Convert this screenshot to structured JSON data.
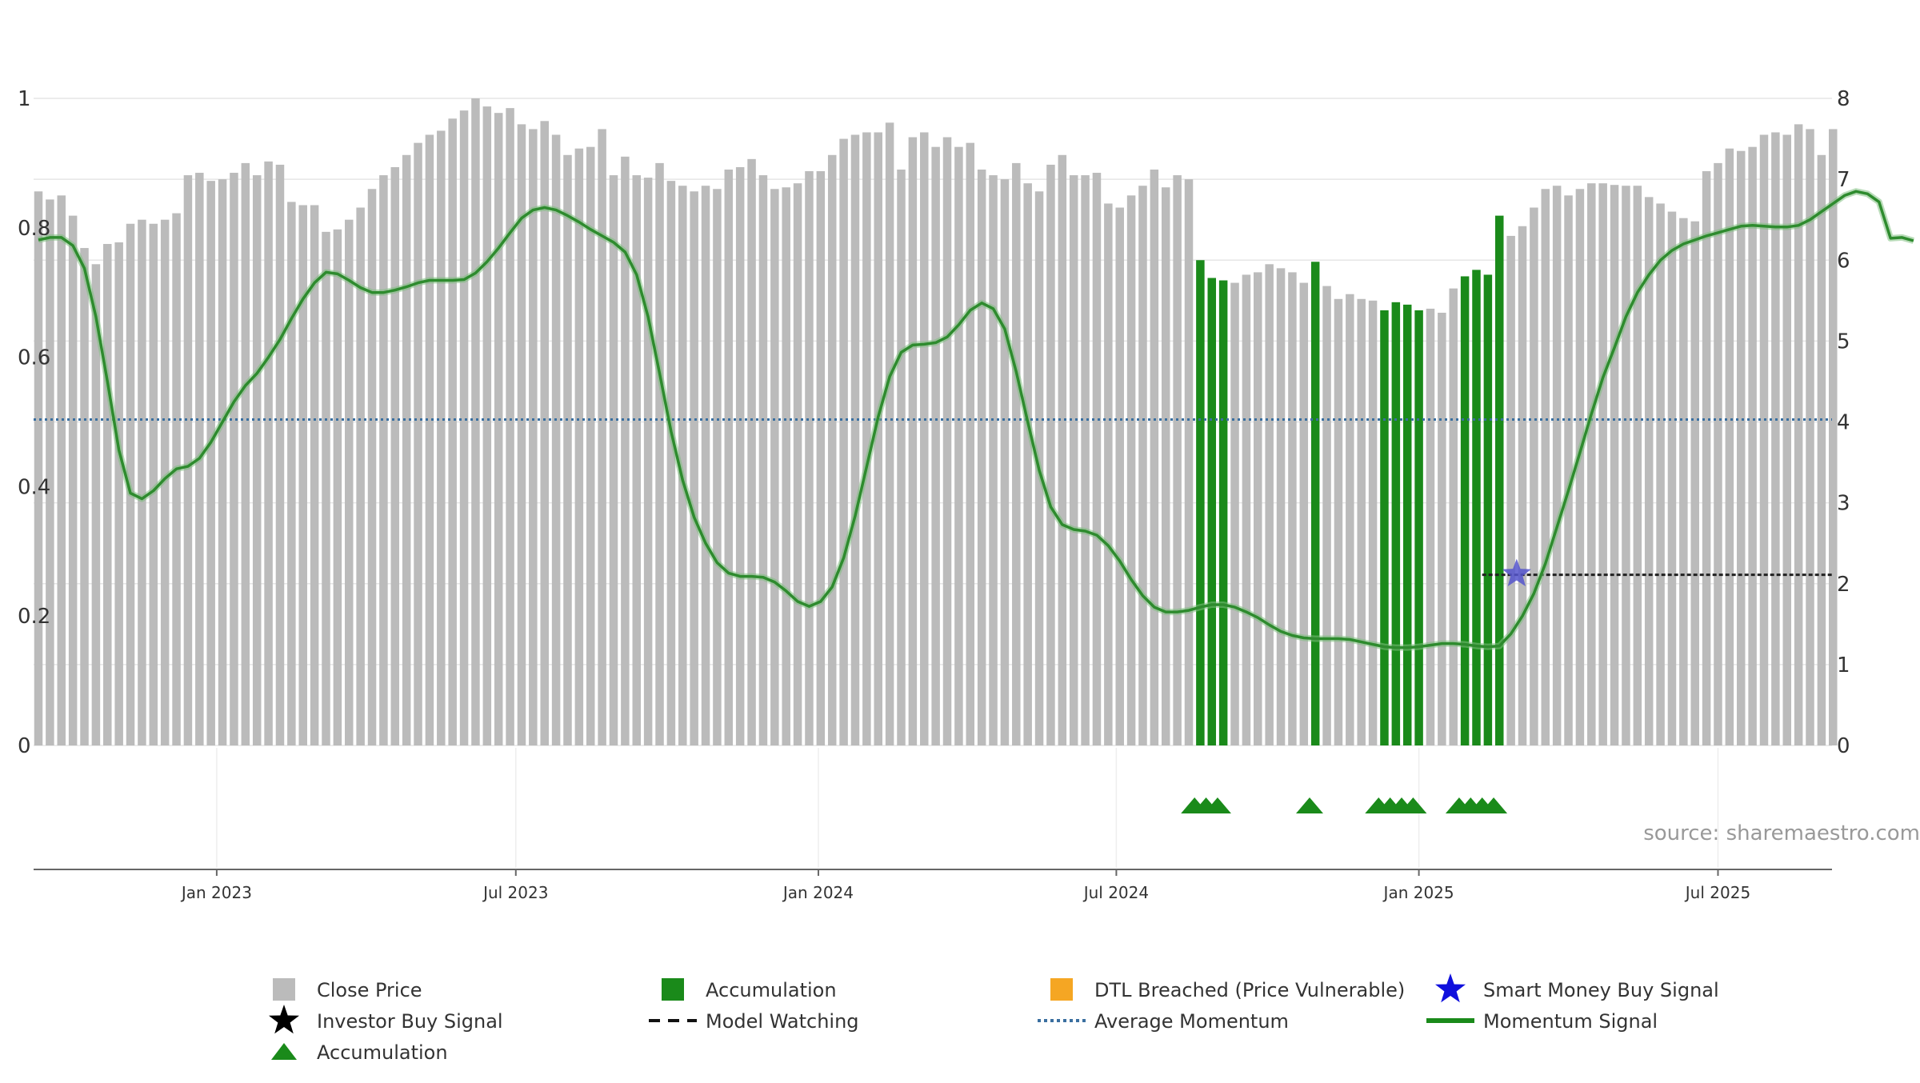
{
  "chart_data": {
    "type": "bar",
    "left_axis": {
      "ticks": [
        "0",
        "0.2",
        "0.4",
        "0.6",
        "0.8",
        "1"
      ],
      "range": [
        0,
        1
      ]
    },
    "right_axis": {
      "ticks": [
        "0",
        "1",
        "2",
        "3",
        "4",
        "5",
        "6",
        "7",
        "8"
      ],
      "range": [
        0,
        8
      ]
    },
    "x_axis": {
      "ticks": [
        {
          "label": "Jan 2023",
          "bar_index": 15.5
        },
        {
          "label": "Jul 2023",
          "bar_index": 41.5
        },
        {
          "label": "Jan 2024",
          "bar_index": 67.8
        },
        {
          "label": "Jul 2024",
          "bar_index": 93.7
        },
        {
          "label": "Jan 2025",
          "bar_index": 120
        },
        {
          "label": "Jul 2025",
          "bar_index": 146
        }
      ]
    },
    "series": [
      {
        "name": "Close Price",
        "axis": "right",
        "color": "#bbbbbb",
        "accumulation_color": "#1a8a1a",
        "values": [
          6.85,
          6.75,
          6.8,
          6.55,
          6.15,
          5.95,
          6.2,
          6.22,
          6.45,
          6.5,
          6.45,
          6.5,
          6.58,
          7.05,
          7.08,
          6.98,
          7.0,
          7.08,
          7.2,
          7.05,
          7.22,
          7.18,
          6.72,
          6.68,
          6.68,
          6.35,
          6.38,
          6.5,
          6.65,
          6.88,
          7.05,
          7.15,
          7.3,
          7.45,
          7.55,
          7.6,
          7.75,
          7.85,
          8.0,
          7.9,
          7.82,
          7.88,
          7.68,
          7.62,
          7.72,
          7.55,
          7.3,
          7.38,
          7.4,
          7.62,
          7.05,
          7.28,
          7.05,
          7.02,
          7.2,
          6.98,
          6.92,
          6.85,
          6.92,
          6.88,
          7.12,
          7.15,
          7.25,
          7.05,
          6.88,
          6.9,
          6.95,
          7.1,
          7.1,
          7.3,
          7.5,
          7.55,
          7.58,
          7.58,
          7.7,
          7.12,
          7.52,
          7.58,
          7.4,
          7.52,
          7.4,
          7.45,
          7.12,
          7.05,
          7.0,
          7.2,
          6.95,
          6.85,
          7.18,
          7.3,
          7.05,
          7.05,
          7.08,
          6.7,
          6.65,
          6.8,
          6.92,
          7.12,
          6.9,
          7.05,
          7.0,
          6.0,
          5.78,
          5.75,
          5.72,
          5.82,
          5.85,
          5.95,
          5.9,
          5.85,
          5.72,
          5.98,
          5.68,
          5.52,
          5.58,
          5.52,
          5.5,
          5.38,
          5.48,
          5.45,
          5.38,
          5.4,
          5.35,
          5.65,
          5.8,
          5.88,
          5.82,
          6.55,
          6.3,
          6.42,
          6.65,
          6.88,
          6.92,
          6.8,
          6.88,
          6.95,
          6.95,
          6.93,
          6.92,
          6.92,
          6.78,
          6.7,
          6.6,
          6.52,
          6.48,
          7.1,
          7.2,
          7.38,
          7.35,
          7.4,
          7.55,
          7.58,
          7.55,
          7.68,
          7.62,
          7.3,
          7.62
        ],
        "accumulation_bar_indices": [
          101,
          102,
          103,
          111,
          117,
          118,
          119,
          120,
          124,
          125,
          126,
          127
        ]
      },
      {
        "name": "Momentum Signal",
        "axis": "right",
        "color": "#2e8b2e",
        "values": [
          6.25,
          6.28,
          6.28,
          6.18,
          5.9,
          5.3,
          4.5,
          3.65,
          3.12,
          3.05,
          3.15,
          3.3,
          3.42,
          3.45,
          3.55,
          3.75,
          4.0,
          4.25,
          4.45,
          4.6,
          4.8,
          5.02,
          5.28,
          5.52,
          5.72,
          5.85,
          5.83,
          5.75,
          5.66,
          5.6,
          5.6,
          5.63,
          5.67,
          5.72,
          5.75,
          5.75,
          5.75,
          5.76,
          5.84,
          5.98,
          6.15,
          6.34,
          6.52,
          6.62,
          6.65,
          6.62,
          6.55,
          6.47,
          6.38,
          6.3,
          6.22,
          6.1,
          5.82,
          5.3,
          4.6,
          3.88,
          3.28,
          2.82,
          2.5,
          2.26,
          2.13,
          2.09,
          2.09,
          2.08,
          2.02,
          1.91,
          1.78,
          1.72,
          1.78,
          1.96,
          2.32,
          2.84,
          3.45,
          4.06,
          4.56,
          4.86,
          4.95,
          4.96,
          4.98,
          5.05,
          5.2,
          5.38,
          5.47,
          5.4,
          5.15,
          4.62,
          4.0,
          3.4,
          2.95,
          2.73,
          2.67,
          2.65,
          2.6,
          2.47,
          2.28,
          2.05,
          1.85,
          1.71,
          1.65,
          1.65,
          1.67,
          1.71,
          1.74,
          1.74,
          1.71,
          1.65,
          1.58,
          1.49,
          1.41,
          1.36,
          1.33,
          1.32,
          1.32,
          1.32,
          1.31,
          1.28,
          1.25,
          1.22,
          1.21,
          1.21,
          1.22,
          1.24,
          1.26,
          1.26,
          1.25,
          1.23,
          1.22,
          1.23,
          1.38,
          1.6,
          1.88,
          2.25,
          2.7,
          3.15,
          3.62,
          4.1,
          4.55,
          4.92,
          5.3,
          5.6,
          5.82,
          6.0,
          6.12,
          6.2,
          6.25,
          6.3,
          6.34,
          6.38,
          6.42,
          6.43,
          6.42,
          6.41,
          6.41,
          6.43,
          6.5,
          6.6,
          6.7,
          6.8,
          6.85,
          6.82,
          6.72,
          6.27,
          6.28,
          6.24
        ]
      },
      {
        "name": "Average Momentum",
        "axis": "right",
        "color": "#3a6fa0",
        "value": 4.03
      },
      {
        "name": "Model Watching",
        "axis": "right",
        "color": "#222222",
        "value": 2.11,
        "from_bar_index": 125.5,
        "to_bar_index": 156
      },
      {
        "name": "Smart Money Buy Signal",
        "axis": "right",
        "color": "#5555cc",
        "points": [
          {
            "bar_index": 128.5,
            "value": 2.12
          }
        ]
      },
      {
        "name": "Accumulation",
        "marker": "triangle",
        "color": "#1a8a1a",
        "bar_indices": [
          100.5,
          101.5,
          102.5,
          110.5,
          116.5,
          117.5,
          118.5,
          119.5,
          123.5,
          124.5,
          125.5,
          126.5
        ]
      }
    ],
    "legend": {
      "placement": "bottom",
      "items": [
        {
          "label": "Close Price",
          "symbol": "square",
          "color": "#bbbbbb"
        },
        {
          "label": "Accumulation",
          "symbol": "square",
          "color": "#1a8a1a"
        },
        {
          "label": "DTL Breached (Price Vulnerable)",
          "symbol": "square",
          "color": "#f5a623"
        },
        {
          "label": "Smart Money Buy Signal",
          "symbol": "star",
          "color": "#1010dd"
        },
        {
          "label": "Investor Buy Signal",
          "symbol": "star",
          "color": "#000000"
        },
        {
          "label": "Model Watching",
          "symbol": "dash",
          "color": "#111111"
        },
        {
          "label": "Average Momentum",
          "symbol": "dot",
          "color": "#3a6fa0"
        },
        {
          "label": "Momentum Signal",
          "symbol": "line",
          "color": "#1a8a1a"
        },
        {
          "label": "Accumulation",
          "symbol": "triangle",
          "color": "#1a8a1a"
        }
      ]
    },
    "annotation": "source: sharemaestro.com",
    "grid": true
  }
}
